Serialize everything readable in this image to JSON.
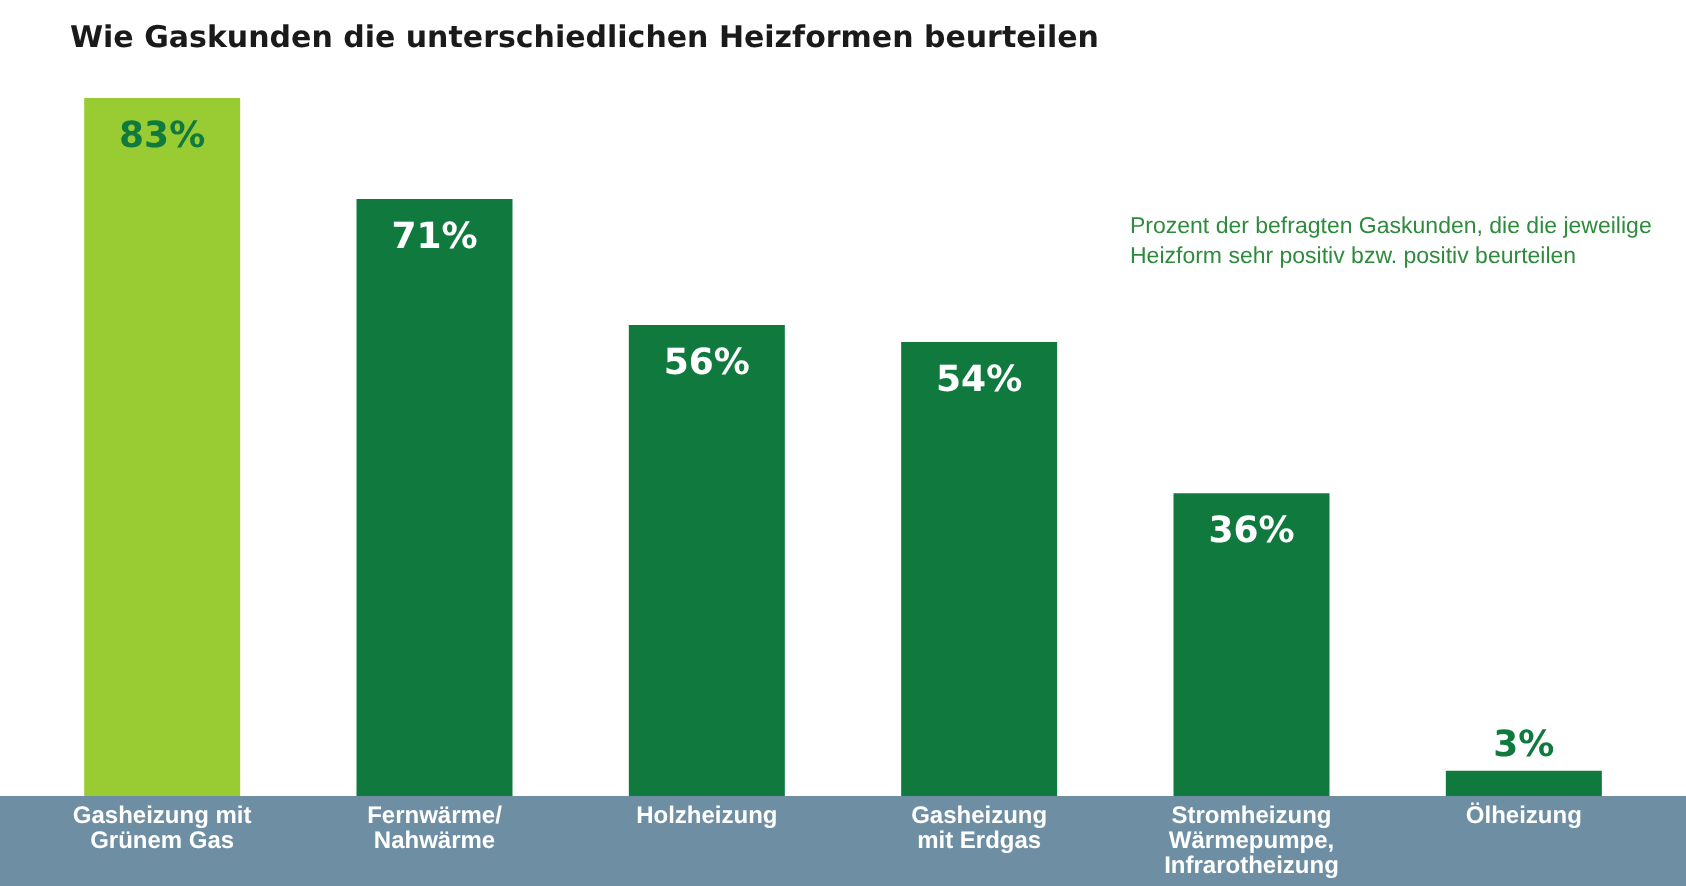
{
  "chart_data": {
    "type": "bar",
    "title": "Wie Gaskunden die unterschiedlichen Heizformen beurteilen",
    "categories": [
      "Gasheizung mit\nGrünem Gas",
      "Fernwärme/\nNahwärme",
      "Holzheizung",
      "Gasheizung\nmit Erdgas",
      "Stromheizung\nWärmepumpe,\nInfrarotheizung",
      "Ölheizung"
    ],
    "values": [
      83,
      71,
      56,
      54,
      36,
      3
    ],
    "value_labels": [
      "83%",
      "71%",
      "56%",
      "54%",
      "36%",
      "3%"
    ],
    "colors": [
      "#99cc33",
      "#107a3e",
      "#107a3e",
      "#107a3e",
      "#107a3e",
      "#107a3e"
    ],
    "annotations": [
      "Prozent der befragten Gaskunden, die die jeweilige\nHeizform sehr positiv bzw. positiv beurteilen"
    ]
  }
}
